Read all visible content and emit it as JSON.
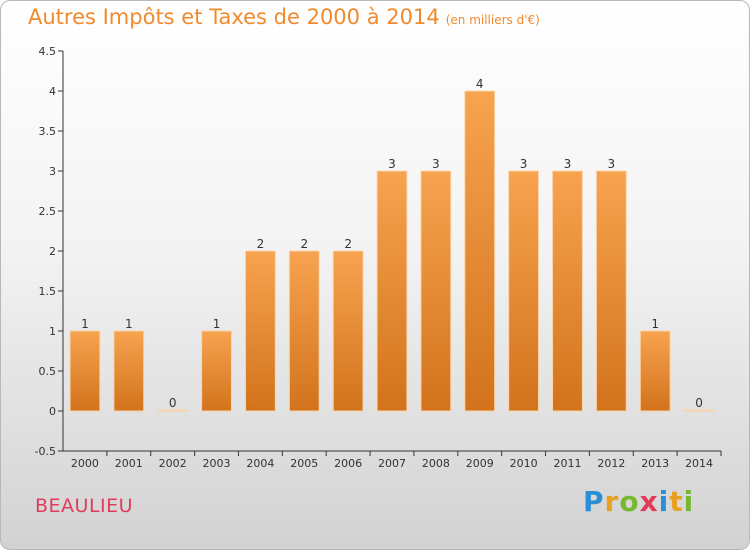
{
  "title": "Autres Impôts et Taxes de 2000 à 2014",
  "subtitle": "(en milliers d'€)",
  "location": "BEAULIEU",
  "logo": {
    "letters": [
      "P",
      "r",
      "o",
      "x",
      "i",
      "t",
      "i"
    ],
    "colors": [
      "#2a8fd6",
      "#e8a020",
      "#78b830",
      "#e03c5a",
      "#2a8fd6",
      "#e8a020",
      "#78b830"
    ]
  },
  "colors": {
    "bar_top": "#f7a350",
    "bar_bottom": "#d2731c",
    "axis": "#333333",
    "title": "#f08a2c"
  },
  "chart_data": {
    "type": "bar",
    "title": "Autres Impôts et Taxes de 2000 à 2014",
    "categories": [
      "2000",
      "2001",
      "2002",
      "2003",
      "2004",
      "2005",
      "2006",
      "2007",
      "2008",
      "2009",
      "2010",
      "2011",
      "2012",
      "2013",
      "2014"
    ],
    "values": [
      1,
      1,
      0,
      1,
      2,
      2,
      2,
      3,
      3,
      4,
      3,
      3,
      3,
      1,
      0
    ],
    "data_labels": [
      "1",
      "1",
      "0",
      "1",
      "2",
      "2",
      "2",
      "3",
      "3",
      "4",
      "3",
      "3",
      "3",
      "1",
      "0"
    ],
    "y_ticks": [
      "-0.5",
      "0",
      "0.5",
      "1",
      "1.5",
      "2",
      "2.5",
      "3",
      "3.5",
      "4",
      "4.5"
    ],
    "ylim": [
      -0.5,
      4.5
    ],
    "xlabel": "",
    "ylabel": "",
    "grid": false,
    "legend": false
  }
}
